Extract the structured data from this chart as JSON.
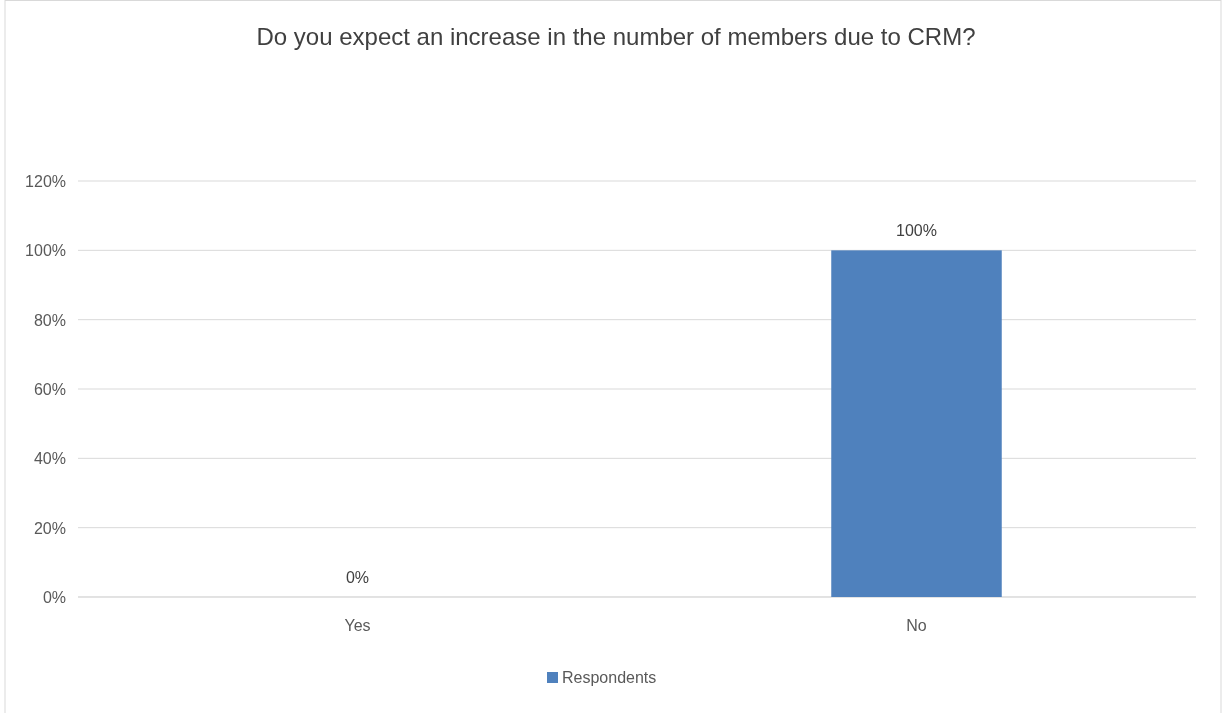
{
  "chart_data": {
    "type": "bar",
    "title": "Do you expect an increase in the number of members due to CRM?",
    "categories": [
      "Yes",
      "No"
    ],
    "series": [
      {
        "name": "Respondents",
        "color": "#4f81bd",
        "values": [
          0,
          100
        ],
        "value_labels": [
          "0%",
          "100%"
        ]
      }
    ],
    "ylim": [
      0,
      120
    ],
    "yticks": [
      {
        "value": 0,
        "label": "0%"
      },
      {
        "value": 20,
        "label": "20%"
      },
      {
        "value": 40,
        "label": "40%"
      },
      {
        "value": 60,
        "label": "60%"
      },
      {
        "value": 80,
        "label": "80%"
      },
      {
        "value": 100,
        "label": "100%"
      },
      {
        "value": 120,
        "label": "120%"
      }
    ],
    "grid": "y",
    "legend": "bottom"
  }
}
